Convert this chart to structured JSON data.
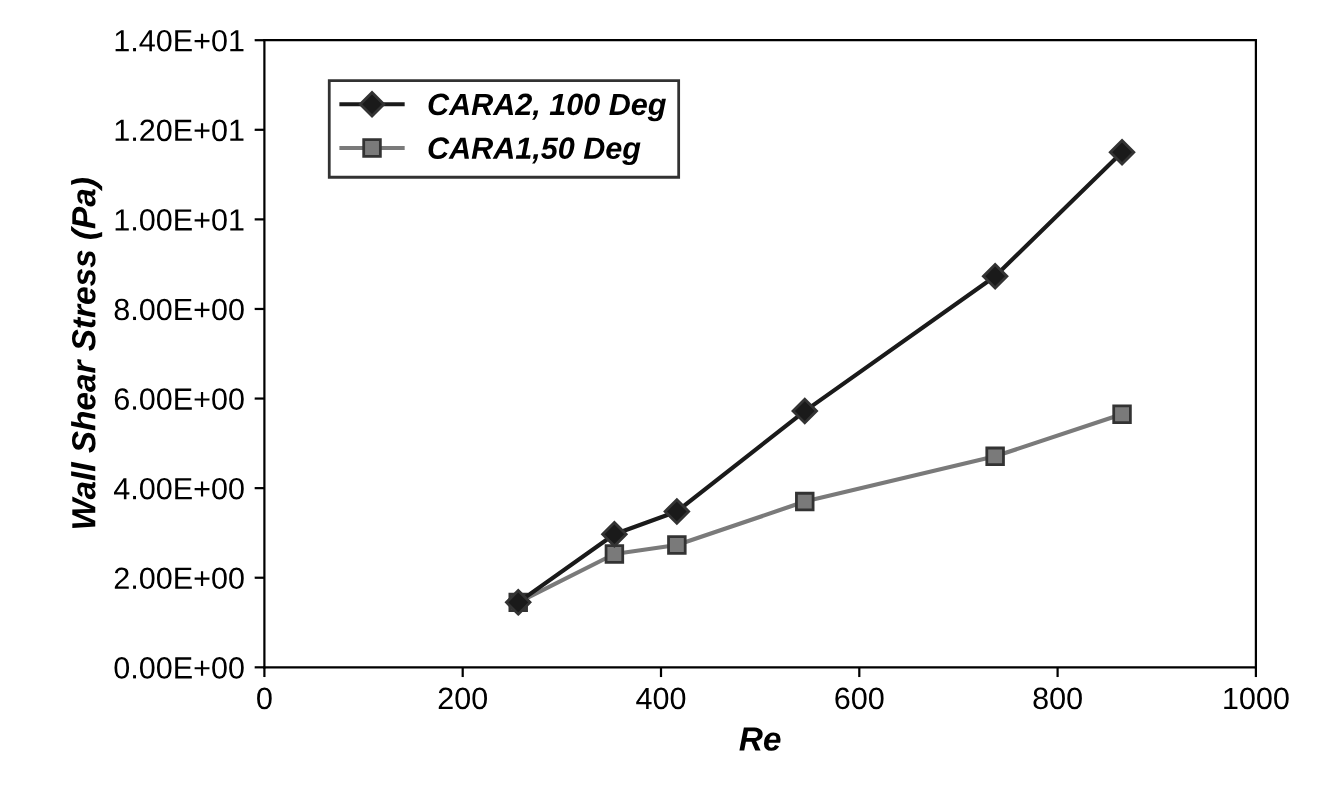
{
  "chart_data": {
    "type": "line",
    "xlabel": "Re",
    "ylabel": "Wall Shear Stress (Pa)",
    "xlim": [
      0,
      1000
    ],
    "xticks": [
      0,
      200,
      400,
      600,
      800,
      1000
    ],
    "ylim": [
      0,
      14
    ],
    "yticks": [
      {
        "value": 0,
        "label": "0.00E+00"
      },
      {
        "value": 2,
        "label": "2.00E+00"
      },
      {
        "value": 4,
        "label": "4.00E+00"
      },
      {
        "value": 6,
        "label": "6.00E+00"
      },
      {
        "value": 8,
        "label": "8.00E+00"
      },
      {
        "value": 10,
        "label": "1.00E+01"
      },
      {
        "value": 12,
        "label": "1.20E+01"
      },
      {
        "value": 14,
        "label": "1.40E+01"
      }
    ],
    "grid": false,
    "legend": "top left",
    "line_style": "solid",
    "series": [
      {
        "name": "CARA2, 100 Deg",
        "color": "#1a1a1a",
        "marker": "diamond",
        "x": [
          256,
          353,
          416,
          545,
          737,
          865
        ],
        "values": [
          1.45,
          2.97,
          3.48,
          5.72,
          8.73,
          11.5
        ]
      },
      {
        "name": "CARA1,50 Deg",
        "color": "#7a7a7a",
        "marker": "square",
        "x": [
          256,
          353,
          416,
          545,
          737,
          865
        ],
        "values": [
          1.45,
          2.53,
          2.73,
          3.7,
          4.71,
          5.65
        ]
      }
    ]
  }
}
